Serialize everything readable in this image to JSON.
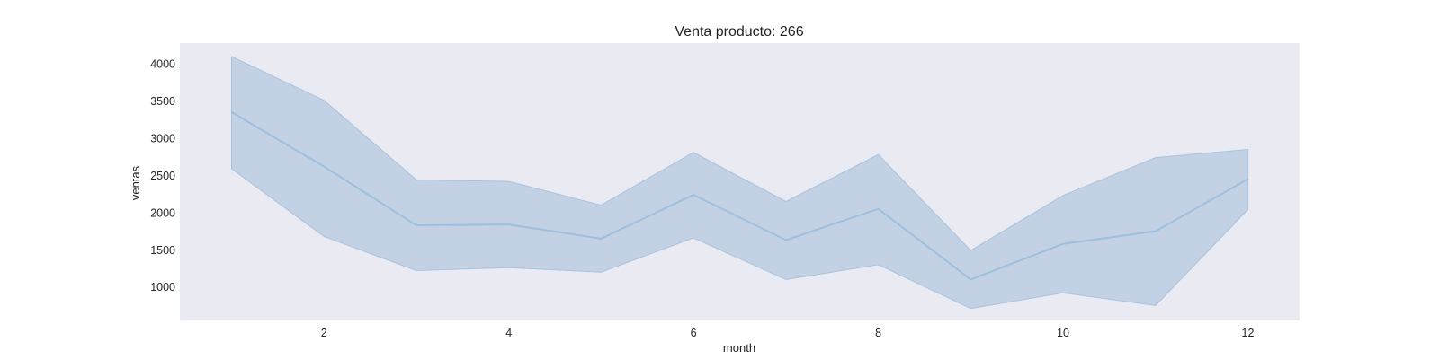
{
  "chart_data": {
    "type": "line",
    "title": "Venta producto: 266",
    "xlabel": "month",
    "ylabel": "ventas",
    "x": [
      1,
      2,
      3,
      4,
      5,
      6,
      7,
      8,
      9,
      10,
      11,
      12
    ],
    "series": [
      {
        "values": [
          3350,
          2620,
          1830,
          1840,
          1650,
          2240,
          1630,
          2050,
          1100,
          1580,
          1750,
          2450
        ],
        "lower": [
          2590,
          1680,
          1220,
          1260,
          1200,
          1660,
          1100,
          1300,
          710,
          920,
          750,
          2040
        ],
        "upper": [
          4100,
          3510,
          2440,
          2420,
          2100,
          2810,
          2150,
          2780,
          1490,
          2230,
          2740,
          2850
        ]
      }
    ],
    "xticks": [
      "2",
      "4",
      "6",
      "8",
      "10",
      "12"
    ],
    "yticks": [
      "1000",
      "1500",
      "2000",
      "2500",
      "3000",
      "3500",
      "4000"
    ],
    "xlim": [
      0.44,
      12.56
    ],
    "ylim": [
      550,
      4280
    ],
    "grid": false,
    "colors": {
      "plot_background": "#eaeaf2",
      "line": "#9ebfdd",
      "band_fill": "#c2d2e4",
      "band_edge": "#a8c3de"
    }
  }
}
